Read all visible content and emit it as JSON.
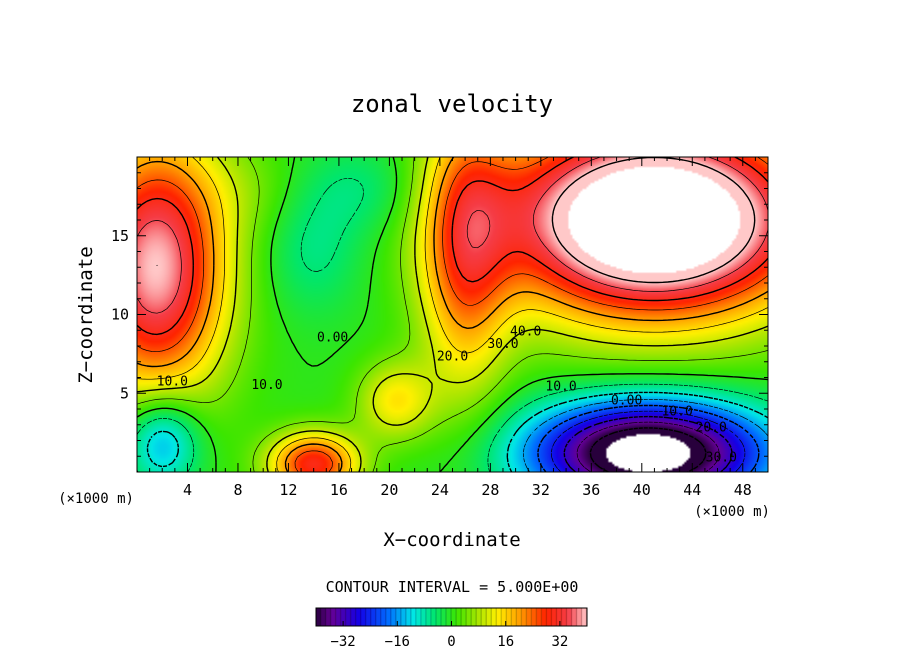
{
  "chart_data": {
    "type": "contour",
    "title": "zonal velocity",
    "xlabel": "X−coordinate",
    "ylabel": "Z−coordinate",
    "x_unit": "(×1000 m)",
    "z_unit": "(×1000 m)",
    "xlim": [
      0,
      50
    ],
    "ylim": [
      0,
      20
    ],
    "x_ticks": [
      4,
      8,
      12,
      16,
      20,
      24,
      28,
      32,
      36,
      40,
      44,
      48
    ],
    "y_ticks": [
      5,
      10,
      15
    ],
    "contour_interval_text": "CONTOUR INTERVAL = 5.000E+00",
    "contour_interval": 5.0,
    "negative_contours": "dashed",
    "color_range": [
      -40,
      40
    ],
    "colorbar_ticks": [
      "−32",
      "−16",
      "0",
      "16",
      "32"
    ],
    "colorbar_tick_values": [
      -32,
      -16,
      0,
      16,
      32
    ],
    "contour_labels": [
      {
        "text": "0.00",
        "x": 15.5,
        "z": 8.6
      },
      {
        "text": "10.0",
        "x": 2.8,
        "z": 5.8
      },
      {
        "text": "10.0",
        "x": 10.3,
        "z": 5.6
      },
      {
        "text": "40.0",
        "x": 30.8,
        "z": 9.0
      },
      {
        "text": "30.0",
        "x": 29.0,
        "z": 8.2
      },
      {
        "text": "20.0",
        "x": 25.0,
        "z": 7.4
      },
      {
        "text": "10.0",
        "x": 33.6,
        "z": 5.5
      },
      {
        "text": "0.00",
        "x": 38.8,
        "z": 4.6
      },
      {
        "text": "10.0",
        "x": 42.8,
        "z": 3.9
      },
      {
        "text": "20.0",
        "x": 45.5,
        "z": 2.9
      },
      {
        "text": "30.0",
        "x": 46.3,
        "z": 1.0
      }
    ],
    "masked_regions_above_color_range": [
      "upper right (x 28–50, z 10–20)",
      "bottom (x 35–43, z 0–2)"
    ],
    "features": [
      {
        "type": "jet_max",
        "x": 2.5,
        "z": 12,
        "value": 38
      },
      {
        "type": "jet_max",
        "x": 40,
        "z": 15,
        "value": 55
      },
      {
        "type": "jet_min",
        "x": 40,
        "z": 1.5,
        "value": -45
      },
      {
        "type": "jet_min",
        "x": 14,
        "z": 14,
        "value": -3
      },
      {
        "type": "jet_max",
        "x": 14,
        "z": 0.8,
        "value": 28
      }
    ]
  }
}
